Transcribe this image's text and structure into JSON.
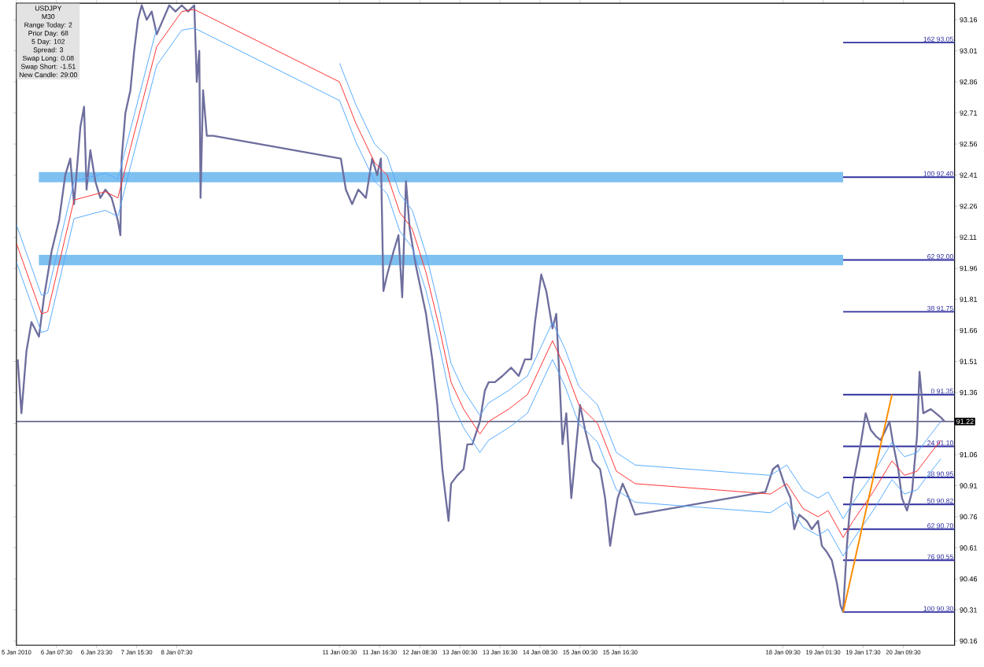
{
  "chart_data": {
    "type": "line",
    "xlim": [
      "2010-01-05T15:30",
      "2010-01-21T06:00"
    ],
    "ylim": [
      90.14,
      93.24
    ],
    "xticks": [
      {
        "value": "2010-01-05T15:30",
        "label": "5 Jan 2010"
      },
      {
        "value": "2010-01-06T07:30",
        "label": "6 Jan 07:30"
      },
      {
        "value": "2010-01-06T23:30",
        "label": "6 Jan 23:30"
      },
      {
        "value": "2010-01-07T15:30",
        "label": "7 Jan 15:30"
      },
      {
        "value": "2010-01-08T07:30",
        "label": "8 Jan 07:30"
      },
      {
        "value": "2010-01-11T00:30",
        "label": "11 Jan 00:30"
      },
      {
        "value": "2010-01-11T16:30",
        "label": "11 Jan 16:30"
      },
      {
        "value": "2010-01-12T08:30",
        "label": "12 Jan 08:30"
      },
      {
        "value": "2010-01-13T00:30",
        "label": "13 Jan 00:30"
      },
      {
        "value": "2010-01-13T16:30",
        "label": "13 Jan 16:30"
      },
      {
        "value": "2010-01-14T08:30",
        "label": "14 Jan 08:30"
      },
      {
        "value": "2010-01-15T00:30",
        "label": "15 Jan 00:30"
      },
      {
        "value": "2010-01-15T16:30",
        "label": "15 Jan 16:30"
      },
      {
        "value": "2010-01-18T09:30",
        "label": "18 Jan 09:30"
      },
      {
        "value": "2010-01-19T01:30",
        "label": "19 Jan 01:30"
      },
      {
        "value": "2010-01-19T17:30",
        "label": "19 Jan 17:30"
      },
      {
        "value": "2010-01-20T09:30",
        "label": "20 Jan 09:30"
      }
    ],
    "yticks": [
      93.16,
      93.01,
      92.86,
      92.71,
      92.56,
      92.41,
      92.26,
      92.11,
      91.96,
      91.81,
      91.66,
      91.51,
      91.36,
      {
        "value": 91.21,
        "label": null
      },
      91.06,
      90.91,
      90.76,
      90.61,
      90.46,
      90.31,
      90.16
    ],
    "series": [
      {
        "color": "#6e6e9e",
        "x": [
          "2010-01-05T16:00",
          "2010-01-05T17:30",
          "2010-01-05T19:30",
          "2010-01-05T21:30",
          "2010-01-06T00:30",
          "2010-01-06T02:30",
          "2010-01-06T05:30",
          "2010-01-06T08:30",
          "2010-01-06T11:00",
          "2010-01-06T13:00",
          "2010-01-06T14:30",
          "2010-01-06T17:00",
          "2010-01-06T18:30",
          "2010-01-06T19:30",
          "2010-01-06T21:00",
          "2010-01-06T23:00",
          "2010-01-07T01:00",
          "2010-01-07T03:00",
          "2010-01-07T05:30",
          "2010-01-07T08:00",
          "2010-01-07T09:00",
          "2010-01-07T09:30",
          "2010-01-07T11:00",
          "2010-01-07T13:00",
          "2010-01-07T14:30",
          "2010-01-07T16:00",
          "2010-01-07T17:30",
          "2010-01-07T19:30",
          "2010-01-07T21:30",
          "2010-01-07T23:30",
          "2010-01-08T02:00",
          "2010-01-08T04:30",
          "2010-01-08T07:00",
          "2010-01-08T09:30",
          "2010-01-08T12:00",
          "2010-01-08T14:30",
          "2010-01-08T15:30",
          "2010-01-08T16:30",
          "2010-01-08T17:00",
          "2010-01-08T18:00",
          "2010-01-08T19:30",
          "2010-01-08T22:00",
          "2010-01-11T01:00",
          "2010-01-11T03:00",
          "2010-01-11T05:30",
          "2010-01-11T08:00",
          "2010-01-11T11:00",
          "2010-01-11T13:30",
          "2010-01-11T15:30",
          "2010-01-11T17:00",
          "2010-01-11T18:00",
          "2010-01-11T19:30",
          "2010-01-11T22:00",
          "2010-01-12T00:00",
          "2010-01-12T01:30",
          "2010-01-12T03:00",
          "2010-01-12T04:30",
          "2010-01-12T07:00",
          "2010-01-12T11:00",
          "2010-01-12T13:30",
          "2010-01-12T15:30",
          "2010-01-12T17:30",
          "2010-01-12T20:00",
          "2010-01-12T21:00",
          "2010-01-12T23:30",
          "2010-01-13T02:00",
          "2010-01-13T03:30",
          "2010-01-13T05:30",
          "2010-01-13T08:30",
          "2010-01-13T10:30",
          "2010-01-13T12:00",
          "2010-01-13T14:30",
          "2010-01-13T17:30",
          "2010-01-13T21:00",
          "2010-01-14T00:00",
          "2010-01-14T02:30",
          "2010-01-14T05:00",
          "2010-01-14T06:30",
          "2010-01-14T09:00",
          "2010-01-14T11:00",
          "2010-01-14T13:30",
          "2010-01-14T15:00",
          "2010-01-14T16:30",
          "2010-01-14T17:30",
          "2010-01-14T19:00",
          "2010-01-14T21:00",
          "2010-01-15T00:30",
          "2010-01-15T02:30",
          "2010-01-15T05:30",
          "2010-01-15T08:30",
          "2010-01-15T10:30",
          "2010-01-15T12:30",
          "2010-01-15T14:00",
          "2010-01-15T15:30",
          "2010-01-15T17:30",
          "2010-01-15T20:00",
          "2010-01-15T22:30",
          "2010-01-18T02:30",
          "2010-01-18T05:30",
          "2010-01-18T07:30",
          "2010-01-18T10:00",
          "2010-01-18T12:30",
          "2010-01-18T14:00",
          "2010-01-18T16:00",
          "2010-01-18T19:00",
          "2010-01-18T21:00",
          "2010-01-18T23:30",
          "2010-01-19T01:00",
          "2010-01-19T03:00",
          "2010-01-19T05:00",
          "2010-01-19T07:00",
          "2010-01-19T08:30",
          "2010-01-19T09:30",
          "2010-01-19T11:00",
          "2010-01-19T12:00",
          "2010-01-19T13:30",
          "2010-01-19T16:30",
          "2010-01-19T18:30",
          "2010-01-19T20:30",
          "2010-01-19T22:30",
          "2010-01-20T00:30",
          "2010-01-20T02:30",
          "2010-01-20T04:00",
          "2010-01-20T05:30",
          "2010-01-20T07:30",
          "2010-01-20T09:00",
          "2010-01-20T11:00",
          "2010-01-20T13:00",
          "2010-01-20T15:00",
          "2010-01-20T16:00",
          "2010-01-20T17:30",
          "2010-01-20T20:30",
          "2010-01-21T00:30",
          "2010-01-21T02:00"
        ],
        "values": [
          91.52,
          91.26,
          91.56,
          91.7,
          91.63,
          91.82,
          92.04,
          92.19,
          92.41,
          92.49,
          92.27,
          92.64,
          92.74,
          92.34,
          92.53,
          92.38,
          92.3,
          92.34,
          92.3,
          92.19,
          92.12,
          92.49,
          92.71,
          92.82,
          93.01,
          93.16,
          93.23,
          93.16,
          93.2,
          93.09,
          93.16,
          93.23,
          93.2,
          93.23,
          93.2,
          93.23,
          92.86,
          93.01,
          92.3,
          92.82,
          92.6,
          92.6,
          92.49,
          92.34,
          92.27,
          92.34,
          92.3,
          92.49,
          92.41,
          92.49,
          91.85,
          91.93,
          92.04,
          92.12,
          91.82,
          92.38,
          92.15,
          91.97,
          91.74,
          91.52,
          91.3,
          90.99,
          90.74,
          90.92,
          90.96,
          90.99,
          91.11,
          91.11,
          91.22,
          91.37,
          91.41,
          91.41,
          91.44,
          91.48,
          91.44,
          91.52,
          91.52,
          91.7,
          91.93,
          91.85,
          91.67,
          91.74,
          91.37,
          91.11,
          91.26,
          90.85,
          91.3,
          91.18,
          91.03,
          90.99,
          90.85,
          90.62,
          90.74,
          90.85,
          90.92,
          90.85,
          90.77,
          90.88,
          90.99,
          91.01,
          90.92,
          90.85,
          90.7,
          90.77,
          90.74,
          90.7,
          90.74,
          90.62,
          90.59,
          90.55,
          90.44,
          90.33,
          90.3,
          90.62,
          90.77,
          90.92,
          91.11,
          91.26,
          91.18,
          91.15,
          91.13,
          91.18,
          91.22,
          91.11,
          90.99,
          90.85,
          90.79,
          90.88,
          91.15,
          91.46,
          91.26,
          91.28,
          91.24,
          91.22
        ]
      },
      {
        "color": "#ff3030",
        "x": [
          "2010-01-05T15:30",
          "2010-01-06T01:30",
          "2010-01-06T04:00",
          "2010-01-06T14:30",
          "2010-01-07T03:00",
          "2010-01-07T08:00",
          "2010-01-07T13:00",
          "2010-01-07T23:30",
          "2010-01-08T09:30",
          "2010-01-08T14:30",
          "2010-01-11T00:30",
          "2010-01-11T07:00",
          "2010-01-11T14:30",
          "2010-01-11T19:30",
          "2010-01-12T00:30",
          "2010-01-12T05:30",
          "2010-01-12T11:00",
          "2010-01-12T16:00",
          "2010-01-12T21:00",
          "2010-01-13T02:00",
          "2010-01-13T08:30",
          "2010-01-13T12:00",
          "2010-01-13T20:00",
          "2010-01-14T03:30",
          "2010-01-14T08:30",
          "2010-01-14T13:30",
          "2010-01-14T18:30",
          "2010-01-15T00:00",
          "2010-01-15T07:30",
          "2010-01-15T15:00",
          "2010-01-15T22:30",
          "2010-01-18T04:30",
          "2010-01-18T11:00",
          "2010-01-18T17:30",
          "2010-01-18T23:30",
          "2010-01-19T03:30",
          "2010-01-19T09:30",
          "2010-01-19T13:30",
          "2010-01-19T21:30",
          "2010-01-20T05:00",
          "2010-01-20T10:00",
          "2010-01-20T15:00",
          "2010-01-20T20:00",
          "2010-01-21T00:30"
        ],
        "values": [
          92.08,
          91.74,
          91.75,
          92.29,
          92.33,
          92.3,
          92.54,
          93.03,
          93.2,
          93.21,
          92.86,
          92.66,
          92.47,
          92.41,
          92.23,
          92.15,
          91.94,
          91.69,
          91.41,
          91.28,
          91.16,
          91.22,
          91.28,
          91.35,
          91.48,
          91.61,
          91.48,
          91.3,
          91.21,
          90.98,
          90.92,
          90.87,
          90.92,
          90.8,
          90.76,
          90.79,
          90.66,
          90.74,
          90.88,
          91.03,
          90.96,
          90.98,
          91.06,
          91.13
        ]
      },
      {
        "color": "#55aaff",
        "x": [
          "2010-01-05T15:30",
          "2010-01-06T01:30",
          "2010-01-06T04:00",
          "2010-01-06T14:30",
          "2010-01-07T03:00",
          "2010-01-07T08:00",
          "2010-01-07T13:00",
          "2010-01-07T23:30",
          "2010-01-08T09:30",
          "2010-01-08T14:30",
          "2010-01-11T00:30",
          "2010-01-11T07:00",
          "2010-01-11T14:30",
          "2010-01-11T19:30",
          "2010-01-12T00:30",
          "2010-01-12T05:30",
          "2010-01-12T11:00",
          "2010-01-12T16:00",
          "2010-01-12T21:00",
          "2010-01-13T02:00",
          "2010-01-13T08:30",
          "2010-01-13T12:00",
          "2010-01-13T20:00",
          "2010-01-14T03:30",
          "2010-01-14T08:30",
          "2010-01-14T13:30",
          "2010-01-14T18:30",
          "2010-01-15T00:00",
          "2010-01-15T07:30",
          "2010-01-15T15:00",
          "2010-01-15T22:30",
          "2010-01-18T04:30",
          "2010-01-18T11:00",
          "2010-01-18T17:30",
          "2010-01-18T23:30",
          "2010-01-19T03:30",
          "2010-01-19T09:30",
          "2010-01-19T13:30",
          "2010-01-19T21:30",
          "2010-01-20T05:00",
          "2010-01-20T10:00",
          "2010-01-20T15:00",
          "2010-01-20T20:00",
          "2010-01-21T00:30"
        ],
        "values": [
          92.17,
          91.83,
          91.84,
          92.38,
          92.42,
          92.39,
          92.63,
          93.12,
          null,
          null,
          92.95,
          92.75,
          92.56,
          92.5,
          92.32,
          92.24,
          92.03,
          91.78,
          91.5,
          91.37,
          91.25,
          91.31,
          91.37,
          91.44,
          91.57,
          91.7,
          91.57,
          91.39,
          91.3,
          91.07,
          91.01,
          90.96,
          91.01,
          90.89,
          90.85,
          90.88,
          90.75,
          90.83,
          90.97,
          91.12,
          91.05,
          91.07,
          91.15,
          91.22
        ]
      },
      {
        "color": "#55aaff",
        "x": [
          "2010-01-05T15:30",
          "2010-01-06T01:30",
          "2010-01-06T04:00",
          "2010-01-06T14:30",
          "2010-01-07T03:00",
          "2010-01-07T08:00",
          "2010-01-07T13:00",
          "2010-01-07T23:30",
          "2010-01-08T09:30",
          "2010-01-08T14:30",
          "2010-01-11T00:30",
          "2010-01-11T07:00",
          "2010-01-11T14:30",
          "2010-01-11T19:30",
          "2010-01-12T00:30",
          "2010-01-12T05:30",
          "2010-01-12T11:00",
          "2010-01-12T16:00",
          "2010-01-12T21:00",
          "2010-01-13T02:00",
          "2010-01-13T08:30",
          "2010-01-13T12:00",
          "2010-01-13T20:00",
          "2010-01-14T03:30",
          "2010-01-14T08:30",
          "2010-01-14T13:30",
          "2010-01-14T18:30",
          "2010-01-15T00:00",
          "2010-01-15T07:30",
          "2010-01-15T15:00",
          "2010-01-15T22:30",
          "2010-01-18T04:30",
          "2010-01-18T11:00",
          "2010-01-18T17:30",
          "2010-01-18T23:30",
          "2010-01-19T03:30",
          "2010-01-19T09:30",
          "2010-01-19T13:30",
          "2010-01-19T21:30",
          "2010-01-20T05:00",
          "2010-01-20T10:00",
          "2010-01-20T15:00",
          "2010-01-20T20:00",
          "2010-01-21T00:30"
        ],
        "values": [
          91.99,
          91.65,
          91.66,
          92.2,
          92.24,
          92.21,
          92.45,
          92.94,
          93.11,
          93.12,
          92.77,
          92.57,
          92.38,
          92.32,
          92.14,
          92.06,
          91.85,
          91.6,
          91.32,
          91.19,
          91.07,
          91.13,
          91.19,
          91.26,
          91.39,
          91.52,
          91.39,
          91.21,
          91.12,
          90.89,
          90.83,
          90.78,
          90.83,
          90.71,
          90.67,
          90.7,
          90.57,
          90.65,
          90.79,
          90.94,
          90.87,
          90.89,
          90.97,
          91.04
        ]
      },
      {
        "color": "#ff8c00",
        "x": [
          "2010-01-19T09:30",
          "2010-01-20T05:00"
        ],
        "values": [
          90.3,
          91.35
        ]
      }
    ],
    "ref_lines": [
      {
        "axis": "y",
        "value": 91.22,
        "label": "91.22",
        "color": "#303060"
      },
      {
        "axis": "y",
        "value": 93.05,
        "label": "162 93.05",
        "color": "#3030a0"
      },
      {
        "axis": "y",
        "value": 92.4,
        "label": "100 92.40",
        "color": "#3030a0"
      },
      {
        "axis": "y",
        "value": 92.0,
        "label": "62 92.00",
        "color": "#3030a0"
      },
      {
        "axis": "y",
        "value": 91.75,
        "label": "38 91.75",
        "color": "#3030a0"
      },
      {
        "axis": "y",
        "value": 91.35,
        "label": "0 91.35",
        "color": "#3030a0"
      },
      {
        "axis": "y",
        "value": 91.1,
        "label": "24 91.10",
        "color": "#3030a0"
      },
      {
        "axis": "y",
        "value": 90.95,
        "label": "38 90.95",
        "color": "#3030a0"
      },
      {
        "axis": "y",
        "value": 90.82,
        "label": "50 90.82",
        "color": "#3030a0"
      },
      {
        "axis": "y",
        "value": 90.7,
        "label": "62 90.70",
        "color": "#3030a0"
      },
      {
        "axis": "y",
        "value": 90.55,
        "label": "76 90.55",
        "color": "#3030a0"
      },
      {
        "axis": "y",
        "value": 90.3,
        "label": "100 90.30",
        "color": "#3030a0"
      }
    ],
    "bands": [
      {
        "axis": "y",
        "from": 92.375,
        "to": 92.425,
        "color": "#7ec0f0"
      },
      {
        "axis": "y",
        "from": 91.975,
        "to": 92.025,
        "color": "#7ec0f0"
      }
    ],
    "annotations": [
      "USDJPY",
      "M30",
      "Range Today: 2",
      "Prior Day: 68",
      "5 Day: 102",
      "Spread: 3",
      "Swap Long: 0.08",
      "Swap Short: -1.51",
      "New Candle: 29:00"
    ]
  }
}
